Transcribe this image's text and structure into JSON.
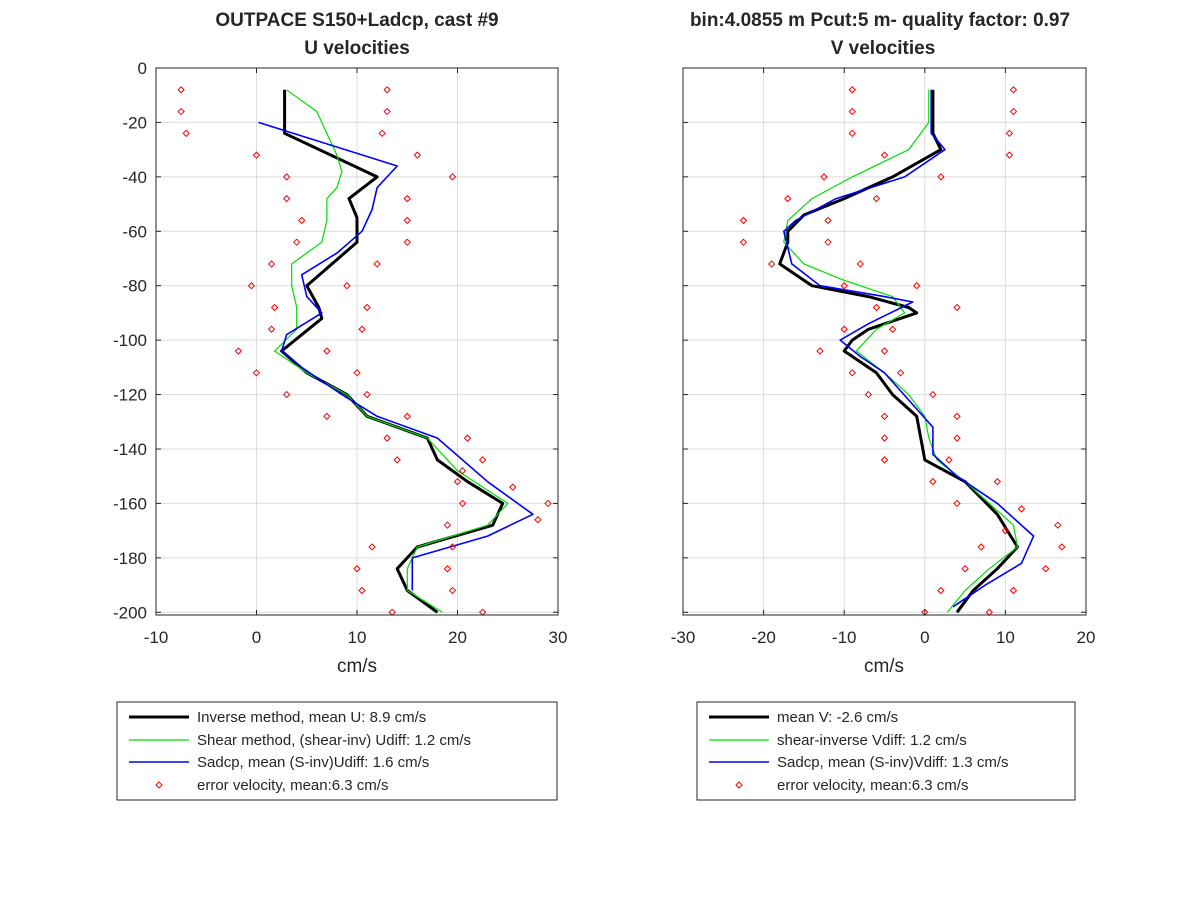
{
  "chart_data": [
    {
      "type": "line",
      "title": "OUTPACE S150+Ladcp, cast #9",
      "subtitle": "U velocities",
      "xlabel": "cm/s",
      "ylabel": "",
      "xlim": [
        -10,
        30
      ],
      "ylim": [
        -201,
        0
      ],
      "xticks": [
        -10,
        0,
        10,
        20,
        30
      ],
      "yticks": [
        0,
        -20,
        -40,
        -60,
        -80,
        -100,
        -120,
        -140,
        -160,
        -180,
        -200
      ],
      "grid": true,
      "legend_position": "below",
      "series": [
        {
          "name": "Inverse method, mean U:  8.9 cm/s",
          "color": "#000000",
          "style": "thick-line",
          "points": [
            [
              2.8,
              -8
            ],
            [
              2.8,
              -24
            ],
            [
              12,
              -40
            ],
            [
              9.2,
              -48
            ],
            [
              10,
              -55
            ],
            [
              10,
              -60
            ],
            [
              10,
              -64
            ],
            [
              5,
              -80
            ],
            [
              6.2,
              -88
            ],
            [
              6.5,
              -92
            ],
            [
              2.5,
              -104
            ],
            [
              5,
              -112
            ],
            [
              9,
              -120
            ],
            [
              11,
              -128
            ],
            [
              17,
              -136
            ],
            [
              18,
              -144
            ],
            [
              21,
              -152
            ],
            [
              24.5,
              -160
            ],
            [
              23.5,
              -168
            ],
            [
              16,
              -176
            ],
            [
              14,
              -184
            ],
            [
              15,
              -192
            ],
            [
              18,
              -200
            ]
          ]
        },
        {
          "name": "Shear method, (shear-inv)  Udiff:  1.2 cm/s",
          "color": "#00dd00",
          "style": "thin-line",
          "points": [
            [
              3,
              -8
            ],
            [
              4.5,
              -12
            ],
            [
              6,
              -16
            ],
            [
              8,
              -32
            ],
            [
              8.5,
              -38
            ],
            [
              8,
              -44
            ],
            [
              7,
              -48
            ],
            [
              7,
              -56
            ],
            [
              6.5,
              -64
            ],
            [
              3.5,
              -72
            ],
            [
              3.5,
              -80
            ],
            [
              4,
              -88
            ],
            [
              4,
              -96
            ],
            [
              1.8,
              -104
            ],
            [
              5,
              -112
            ],
            [
              9,
              -120
            ],
            [
              11,
              -128
            ],
            [
              17,
              -136
            ],
            [
              20,
              -148
            ],
            [
              25,
              -160
            ],
            [
              23,
              -168
            ],
            [
              16,
              -176
            ],
            [
              15,
              -184
            ],
            [
              15,
              -192
            ],
            [
              18.5,
              -200
            ]
          ]
        },
        {
          "name": "Sadcp, mean (S-inv)Udiff: 1.6 cm/s",
          "color": "#0000ff",
          "style": "line",
          "points": [
            [
              0.2,
              -20
            ],
            [
              14,
              -36
            ],
            [
              12,
              -44
            ],
            [
              11.5,
              -52
            ],
            [
              10.5,
              -60
            ],
            [
              8,
              -68
            ],
            [
              4.5,
              -76
            ],
            [
              5,
              -84
            ],
            [
              6.5,
              -90
            ],
            [
              3,
              -98
            ],
            [
              2.5,
              -104
            ],
            [
              4.5,
              -110
            ],
            [
              8.5,
              -120
            ],
            [
              12,
              -128
            ],
            [
              18,
              -136
            ],
            [
              23,
              -152
            ],
            [
              27.5,
              -164
            ],
            [
              23,
              -172
            ],
            [
              15.5,
              -180
            ],
            [
              15.5,
              -192
            ]
          ]
        },
        {
          "name": "error velocity, mean:6.3 cm/s",
          "color": "#ff0000",
          "style": "diamond-markers",
          "points": [
            [
              -7.5,
              -8
            ],
            [
              -7.5,
              -16
            ],
            [
              -7,
              -24
            ],
            [
              0,
              -32
            ],
            [
              3,
              -40
            ],
            [
              3,
              -48
            ],
            [
              4.5,
              -56
            ],
            [
              4,
              -64
            ],
            [
              1.5,
              -72
            ],
            [
              -0.5,
              -80
            ],
            [
              1.8,
              -88
            ],
            [
              1.5,
              -96
            ],
            [
              -1.8,
              -104
            ],
            [
              0,
              -112
            ],
            [
              3,
              -120
            ],
            [
              7,
              -128
            ],
            [
              13,
              -8
            ],
            [
              13,
              -16
            ],
            [
              12.5,
              -24
            ],
            [
              16,
              -32
            ],
            [
              19.5,
              -40
            ],
            [
              15,
              -48
            ],
            [
              15,
              -56
            ],
            [
              15,
              -64
            ],
            [
              12,
              -72
            ],
            [
              9,
              -80
            ],
            [
              11,
              -88
            ],
            [
              10.5,
              -96
            ],
            [
              7,
              -104
            ],
            [
              10,
              -112
            ],
            [
              11,
              -120
            ],
            [
              15,
              -128
            ],
            [
              13,
              -136
            ],
            [
              14,
              -144
            ],
            [
              21,
              -136
            ],
            [
              22.5,
              -144
            ],
            [
              20.5,
              -148
            ],
            [
              20,
              -152
            ],
            [
              25.5,
              -154
            ],
            [
              29,
              -160
            ],
            [
              20.5,
              -160
            ],
            [
              28,
              -166
            ],
            [
              19,
              -168
            ],
            [
              11.5,
              -176
            ],
            [
              19.5,
              -176
            ],
            [
              10,
              -184
            ],
            [
              19,
              -184
            ],
            [
              10.5,
              -192
            ],
            [
              19.5,
              -192
            ],
            [
              13.5,
              -200
            ],
            [
              22.5,
              -200
            ]
          ]
        }
      ]
    },
    {
      "type": "line",
      "title": "bin:4.0855 m  Pcut:5 m- quality factor:  0.97",
      "subtitle": "V velocities",
      "xlabel": "cm/s",
      "ylabel": "",
      "xlim": [
        -30,
        20
      ],
      "ylim": [
        -201,
        0
      ],
      "xticks": [
        -30,
        -20,
        -10,
        0,
        10,
        20
      ],
      "yticks": [
        0,
        -20,
        -40,
        -60,
        -80,
        -100,
        -120,
        -140,
        -160,
        -180,
        -200
      ],
      "grid": true,
      "legend_position": "below",
      "series": [
        {
          "name": "mean V:  -2.6 cm/s",
          "color": "#000000",
          "style": "thick-line",
          "points": [
            [
              1,
              -8
            ],
            [
              1,
              -24
            ],
            [
              2,
              -30
            ],
            [
              -4,
              -40
            ],
            [
              -10,
              -48
            ],
            [
              -15,
              -54
            ],
            [
              -17,
              -60
            ],
            [
              -17,
              -64
            ],
            [
              -18,
              -72
            ],
            [
              -14,
              -80
            ],
            [
              -7,
              -84
            ],
            [
              -2,
              -88
            ],
            [
              -1,
              -90
            ],
            [
              -7,
              -96
            ],
            [
              -9,
              -100
            ],
            [
              -10,
              -104
            ],
            [
              -6,
              -112
            ],
            [
              -4,
              -120
            ],
            [
              -1,
              -128
            ],
            [
              -0.5,
              -136
            ],
            [
              0,
              -144
            ],
            [
              5,
              -152
            ],
            [
              9,
              -164
            ],
            [
              11.5,
              -176
            ],
            [
              9,
              -184
            ],
            [
              6,
              -192
            ],
            [
              4,
              -200
            ]
          ]
        },
        {
          "name": "shear-inverse Vdiff:  1.2 cm/s",
          "color": "#00dd00",
          "style": "thin-line",
          "points": [
            [
              0.5,
              -8
            ],
            [
              0.5,
              -20
            ],
            [
              -2,
              -30
            ],
            [
              -9,
              -40
            ],
            [
              -14,
              -48
            ],
            [
              -17,
              -56
            ],
            [
              -17.5,
              -64
            ],
            [
              -15,
              -72
            ],
            [
              -10,
              -78
            ],
            [
              -4,
              -84
            ],
            [
              -2.5,
              -90
            ],
            [
              -6,
              -96
            ],
            [
              -8.5,
              -104
            ],
            [
              -5,
              -112
            ],
            [
              -2,
              -120
            ],
            [
              0,
              -128
            ],
            [
              0.5,
              -136
            ],
            [
              1.5,
              -144
            ],
            [
              5,
              -152
            ],
            [
              8,
              -160
            ],
            [
              11,
              -168
            ],
            [
              11.5,
              -176
            ],
            [
              8,
              -184
            ],
            [
              5,
              -192
            ],
            [
              2.8,
              -200
            ]
          ]
        },
        {
          "name": "Sadcp, mean (S-inv)Vdiff: 1.3 cm/s",
          "color": "#0000ff",
          "style": "line",
          "points": [
            [
              0.8,
              -8
            ],
            [
              0.8,
              -24
            ],
            [
              2.5,
              -30
            ],
            [
              -2.5,
              -40
            ],
            [
              -11,
              -48
            ],
            [
              -16,
              -56
            ],
            [
              -17.5,
              -60
            ],
            [
              -16.5,
              -72
            ],
            [
              -13,
              -80
            ],
            [
              -5,
              -84
            ],
            [
              -1.5,
              -86
            ],
            [
              -7,
              -94
            ],
            [
              -10.5,
              -100
            ],
            [
              -8,
              -106
            ],
            [
              -5,
              -112
            ],
            [
              -2,
              -122
            ],
            [
              1,
              -132
            ],
            [
              1,
              -142
            ],
            [
              4,
              -150
            ],
            [
              9,
              -160
            ],
            [
              13.5,
              -172
            ],
            [
              12,
              -182
            ],
            [
              7.5,
              -190
            ],
            [
              3.5,
              -198
            ]
          ]
        },
        {
          "name": "error velocity, mean:6.3 cm/s",
          "color": "#ff0000",
          "style": "diamond-markers",
          "points": [
            [
              -9,
              -8
            ],
            [
              -9,
              -16
            ],
            [
              -9,
              -24
            ],
            [
              -5,
              -32
            ],
            [
              -12.5,
              -40
            ],
            [
              -17,
              -48
            ],
            [
              -22.5,
              -56
            ],
            [
              -22.5,
              -64
            ],
            [
              -19,
              -72
            ],
            [
              -10,
              -80
            ],
            [
              -6,
              -88
            ],
            [
              -10,
              -96
            ],
            [
              -13,
              -104
            ],
            [
              -9,
              -112
            ],
            [
              -7,
              -120
            ],
            [
              -5,
              -128
            ],
            [
              -5,
              -136
            ],
            [
              -5,
              -144
            ],
            [
              11,
              -8
            ],
            [
              11,
              -16
            ],
            [
              10.5,
              -24
            ],
            [
              10.5,
              -32
            ],
            [
              2,
              -40
            ],
            [
              -6,
              -48
            ],
            [
              -12,
              -56
            ],
            [
              -12,
              -64
            ],
            [
              -8,
              -72
            ],
            [
              -1,
              -80
            ],
            [
              4,
              -88
            ],
            [
              -4,
              -96
            ],
            [
              -5,
              -104
            ],
            [
              -3,
              -112
            ],
            [
              1,
              -120
            ],
            [
              4,
              -128
            ],
            [
              4,
              -136
            ],
            [
              3,
              -144
            ],
            [
              9,
              -152
            ],
            [
              1,
              -152
            ],
            [
              12,
              -162
            ],
            [
              4,
              -160
            ],
            [
              16.5,
              -168
            ],
            [
              10,
              -170
            ],
            [
              17,
              -176
            ],
            [
              7,
              -176
            ],
            [
              15,
              -184
            ],
            [
              5,
              -184
            ],
            [
              11,
              -192
            ],
            [
              2,
              -192
            ],
            [
              0,
              -200
            ],
            [
              8,
              -200
            ]
          ]
        }
      ]
    }
  ]
}
